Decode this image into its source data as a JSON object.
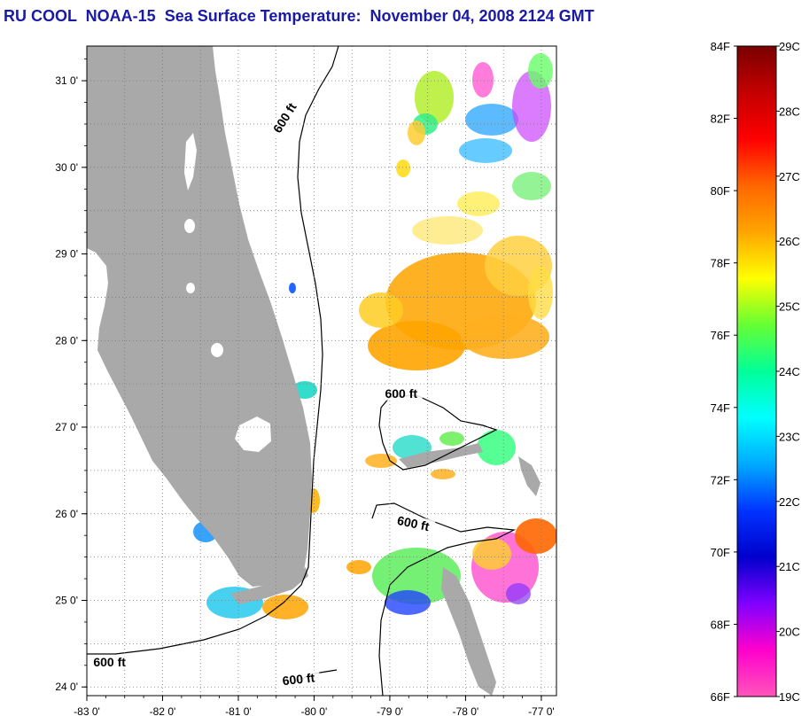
{
  "title": "RU COOL  NOAA-15  Sea Surface Temperature:  November 04, 2008 2124 GMT",
  "colors": {
    "title": "#1a1aa6",
    "land": "#a9a9a9",
    "ocean": "#ffffff",
    "grid": "#777777"
  },
  "map": {
    "lon_range": [
      -83,
      -76.8
    ],
    "lat_range": [
      23.9,
      31.4
    ],
    "x_ticks": [
      {
        "value": -83,
        "label": "-83 0'"
      },
      {
        "value": -82,
        "label": "-82 0'"
      },
      {
        "value": -81,
        "label": "-81 0'"
      },
      {
        "value": -80,
        "label": "-80 0'"
      },
      {
        "value": -79,
        "label": "-79 0'"
      },
      {
        "value": -78,
        "label": "-78 0'"
      },
      {
        "value": -77,
        "label": "-77 0'"
      }
    ],
    "y_ticks": [
      {
        "value": 31,
        "label": "31 0'"
      },
      {
        "value": 30,
        "label": "30 0'"
      },
      {
        "value": 29,
        "label": "29 0'"
      },
      {
        "value": 28,
        "label": "28 0'"
      },
      {
        "value": 27,
        "label": "27 0'"
      },
      {
        "value": 26,
        "label": "26 0'"
      },
      {
        "value": 25,
        "label": "25 0'"
      },
      {
        "value": 24,
        "label": "24 0'"
      }
    ],
    "contour_labels": [
      {
        "text": "600 ft",
        "lon": -80.35,
        "lat": 30.55,
        "rotate": -58
      },
      {
        "text": "600 ft",
        "lon": -78.85,
        "lat": 27.35,
        "rotate": 0
      },
      {
        "text": "600 ft",
        "lon": -78.7,
        "lat": 25.85,
        "rotate": 12
      },
      {
        "text": "600 ft",
        "lon": -82.7,
        "lat": 24.25,
        "rotate": 0
      },
      {
        "text": "600 ft",
        "lon": -80.2,
        "lat": 24.05,
        "rotate": -6
      }
    ]
  },
  "colorbar": {
    "fahrenheit_labels": [
      "84F",
      "82F",
      "80F",
      "78F",
      "76F",
      "74F",
      "72F",
      "70F",
      "68F",
      "66F"
    ],
    "celsius_labels": [
      "29C",
      "28C",
      "27C",
      "26C",
      "25C",
      "24C",
      "23C",
      "22C",
      "21C",
      "20C",
      "19C"
    ],
    "stops": [
      "#7a0000",
      "#c40000",
      "#ff0000",
      "#ff6600",
      "#ffa500",
      "#ffff00",
      "#66ff33",
      "#00ff99",
      "#00ffff",
      "#00aaff",
      "#0033ff",
      "#0000cc",
      "#8000ff",
      "#ff00cc",
      "#ff55bb"
    ]
  }
}
